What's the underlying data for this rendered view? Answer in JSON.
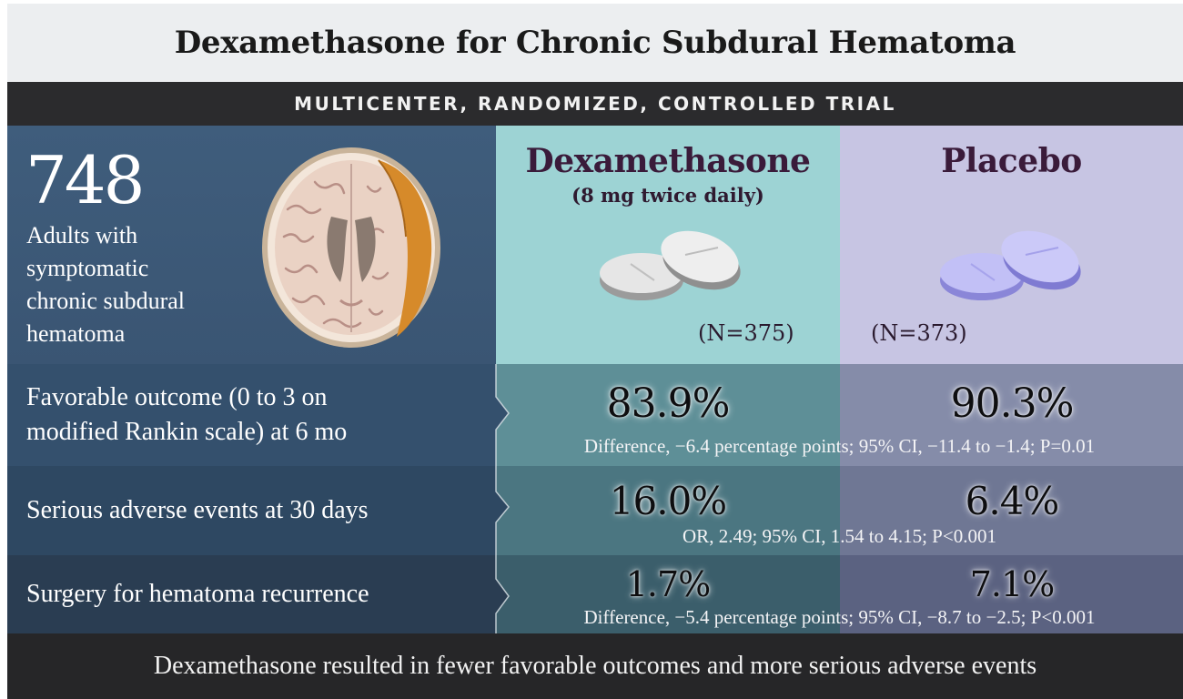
{
  "title": "Dexamethasone for Chronic Subdural Hematoma",
  "subtitle": "MULTICENTER, RANDOMIZED, CONTROLLED TRIAL",
  "population": {
    "count": "748",
    "description_lines": [
      "Adults with",
      "symptomatic",
      "chronic subdural",
      "hematoma"
    ]
  },
  "arms": [
    {
      "name": "Dexamethasone",
      "dose": "(8 mg twice daily)",
      "n": "(N=375)",
      "pill_color": "#e4e4e4"
    },
    {
      "name": "Placebo",
      "dose": "",
      "n": "(N=373)",
      "pill_color": "#b6b4ef"
    }
  ],
  "outcomes": [
    {
      "label_lines": [
        "Favorable outcome (0 to 3 on",
        "modified Rankin scale) at 6 mo"
      ],
      "dexamethasone": "83.9%",
      "placebo": "90.3%",
      "stat": "Difference, −6.4 percentage points; 95% CI, −11.4 to −1.4; P=0.01"
    },
    {
      "label_lines": [
        "Serious adverse events at 30 days"
      ],
      "dexamethasone": "16.0%",
      "placebo": "6.4%",
      "stat": "OR, 2.49; 95% CI,  1.54 to 4.15; P<0.001"
    },
    {
      "label_lines": [
        "Surgery for hematoma recurrence"
      ],
      "dexamethasone": "1.7%",
      "placebo": "7.1%",
      "stat": "Difference, −5.4 percentage points; 95% CI, −8.7 to −2.5; P<0.001"
    }
  ],
  "conclusion": "Dexamethasone resulted in fewer favorable outcomes and more serious adverse events",
  "colors": {
    "dex_header": "#9dd3d4",
    "placebo_header": "#c7c5e3",
    "population_panel": "#3f5d7c",
    "hematoma": "#d68a2a"
  }
}
